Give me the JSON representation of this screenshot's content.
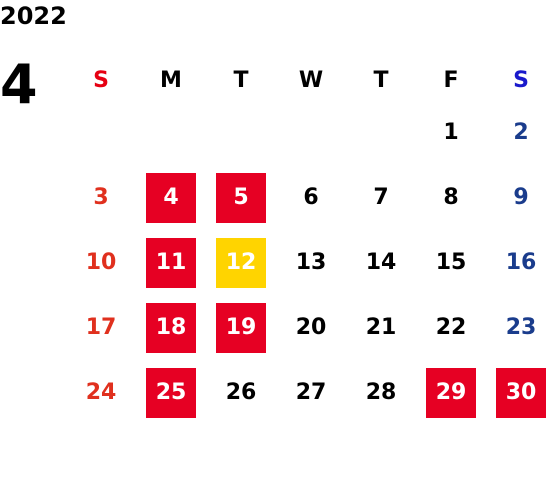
{
  "calendar": {
    "year": "2022",
    "month": "4",
    "weekdays": [
      "S",
      "M",
      "T",
      "W",
      "T",
      "F",
      "S"
    ],
    "colors": {
      "sunday": "#e0301e",
      "saturday": "#1a3c8c",
      "holiday_bg": "#e60023",
      "today_bg": "#ffd400"
    },
    "days": [
      {
        "n": "",
        "t": "empty"
      },
      {
        "n": "",
        "t": "empty"
      },
      {
        "n": "",
        "t": "empty"
      },
      {
        "n": "",
        "t": "empty"
      },
      {
        "n": "",
        "t": "empty"
      },
      {
        "n": "1",
        "t": ""
      },
      {
        "n": "2",
        "t": "sat"
      },
      {
        "n": "3",
        "t": "sun"
      },
      {
        "n": "4",
        "t": "holiday"
      },
      {
        "n": "5",
        "t": "holiday"
      },
      {
        "n": "6",
        "t": ""
      },
      {
        "n": "7",
        "t": ""
      },
      {
        "n": "8",
        "t": ""
      },
      {
        "n": "9",
        "t": "sat"
      },
      {
        "n": "10",
        "t": "sun"
      },
      {
        "n": "11",
        "t": "holiday"
      },
      {
        "n": "12",
        "t": "today"
      },
      {
        "n": "13",
        "t": ""
      },
      {
        "n": "14",
        "t": ""
      },
      {
        "n": "15",
        "t": ""
      },
      {
        "n": "16",
        "t": "sat"
      },
      {
        "n": "17",
        "t": "sun"
      },
      {
        "n": "18",
        "t": "holiday"
      },
      {
        "n": "19",
        "t": "holiday"
      },
      {
        "n": "20",
        "t": ""
      },
      {
        "n": "21",
        "t": ""
      },
      {
        "n": "22",
        "t": ""
      },
      {
        "n": "23",
        "t": "sat"
      },
      {
        "n": "24",
        "t": "sun"
      },
      {
        "n": "25",
        "t": "holiday"
      },
      {
        "n": "26",
        "t": ""
      },
      {
        "n": "27",
        "t": ""
      },
      {
        "n": "28",
        "t": ""
      },
      {
        "n": "29",
        "t": "holiday"
      },
      {
        "n": "30",
        "t": "holiday"
      }
    ]
  }
}
